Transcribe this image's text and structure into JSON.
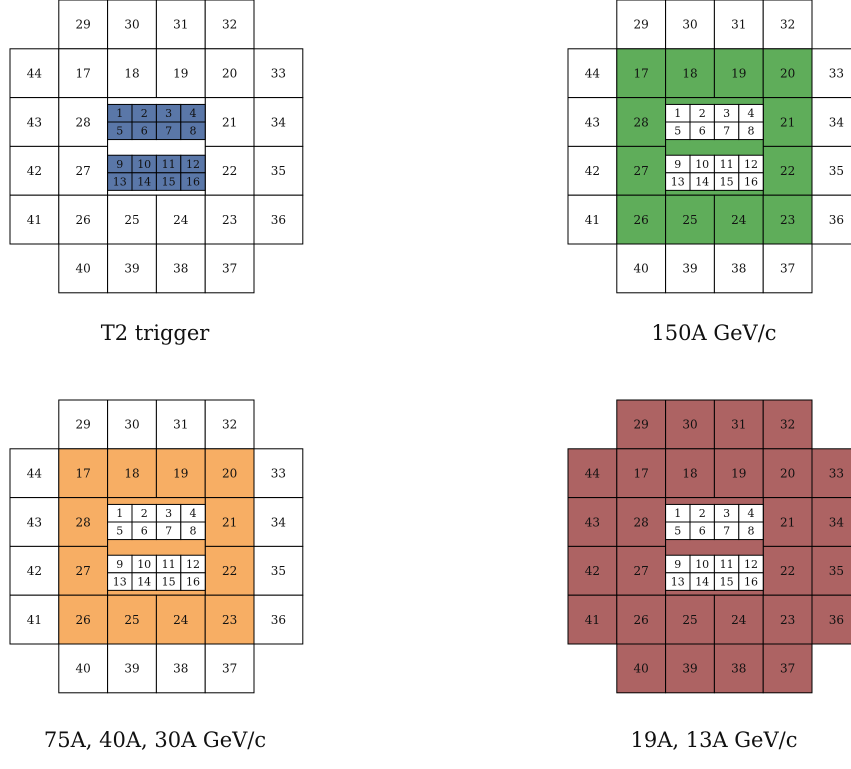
{
  "colors": {
    "blue": "#5a77a8",
    "green": "#5fad5a",
    "orange": "#f7ae64",
    "red": "#ad6363",
    "white": "#ffffff",
    "line": "#000000"
  },
  "panels": [
    {
      "caption": "T2 trigger",
      "inner": "blue",
      "middle": "white",
      "outer": "white"
    },
    {
      "caption": "150A GeV/c",
      "inner": "white",
      "middle": "green",
      "outer": "white"
    },
    {
      "caption": "75A, 40A, 30A GeV/c",
      "inner": "white",
      "middle": "orange",
      "outer": "white"
    },
    {
      "caption": "19A, 13A GeV/c",
      "inner": "white",
      "middle": "red",
      "outer": "red"
    }
  ],
  "grid": {
    "top_row": [
      "29",
      "30",
      "31",
      "32"
    ],
    "row2": [
      "44",
      "17",
      "18",
      "19",
      "20",
      "33"
    ],
    "row3_left": [
      "43",
      "28"
    ],
    "row3_right": [
      "21",
      "34"
    ],
    "row4_left": [
      "42",
      "27"
    ],
    "row4_right": [
      "22",
      "35"
    ],
    "row5": [
      "41",
      "26",
      "25",
      "24",
      "23",
      "36"
    ],
    "bottom_row": [
      "40",
      "39",
      "38",
      "37"
    ],
    "inner_cells": [
      "1",
      "2",
      "3",
      "4",
      "5",
      "6",
      "7",
      "8",
      "9",
      "10",
      "11",
      "12",
      "13",
      "14",
      "15",
      "16"
    ]
  }
}
